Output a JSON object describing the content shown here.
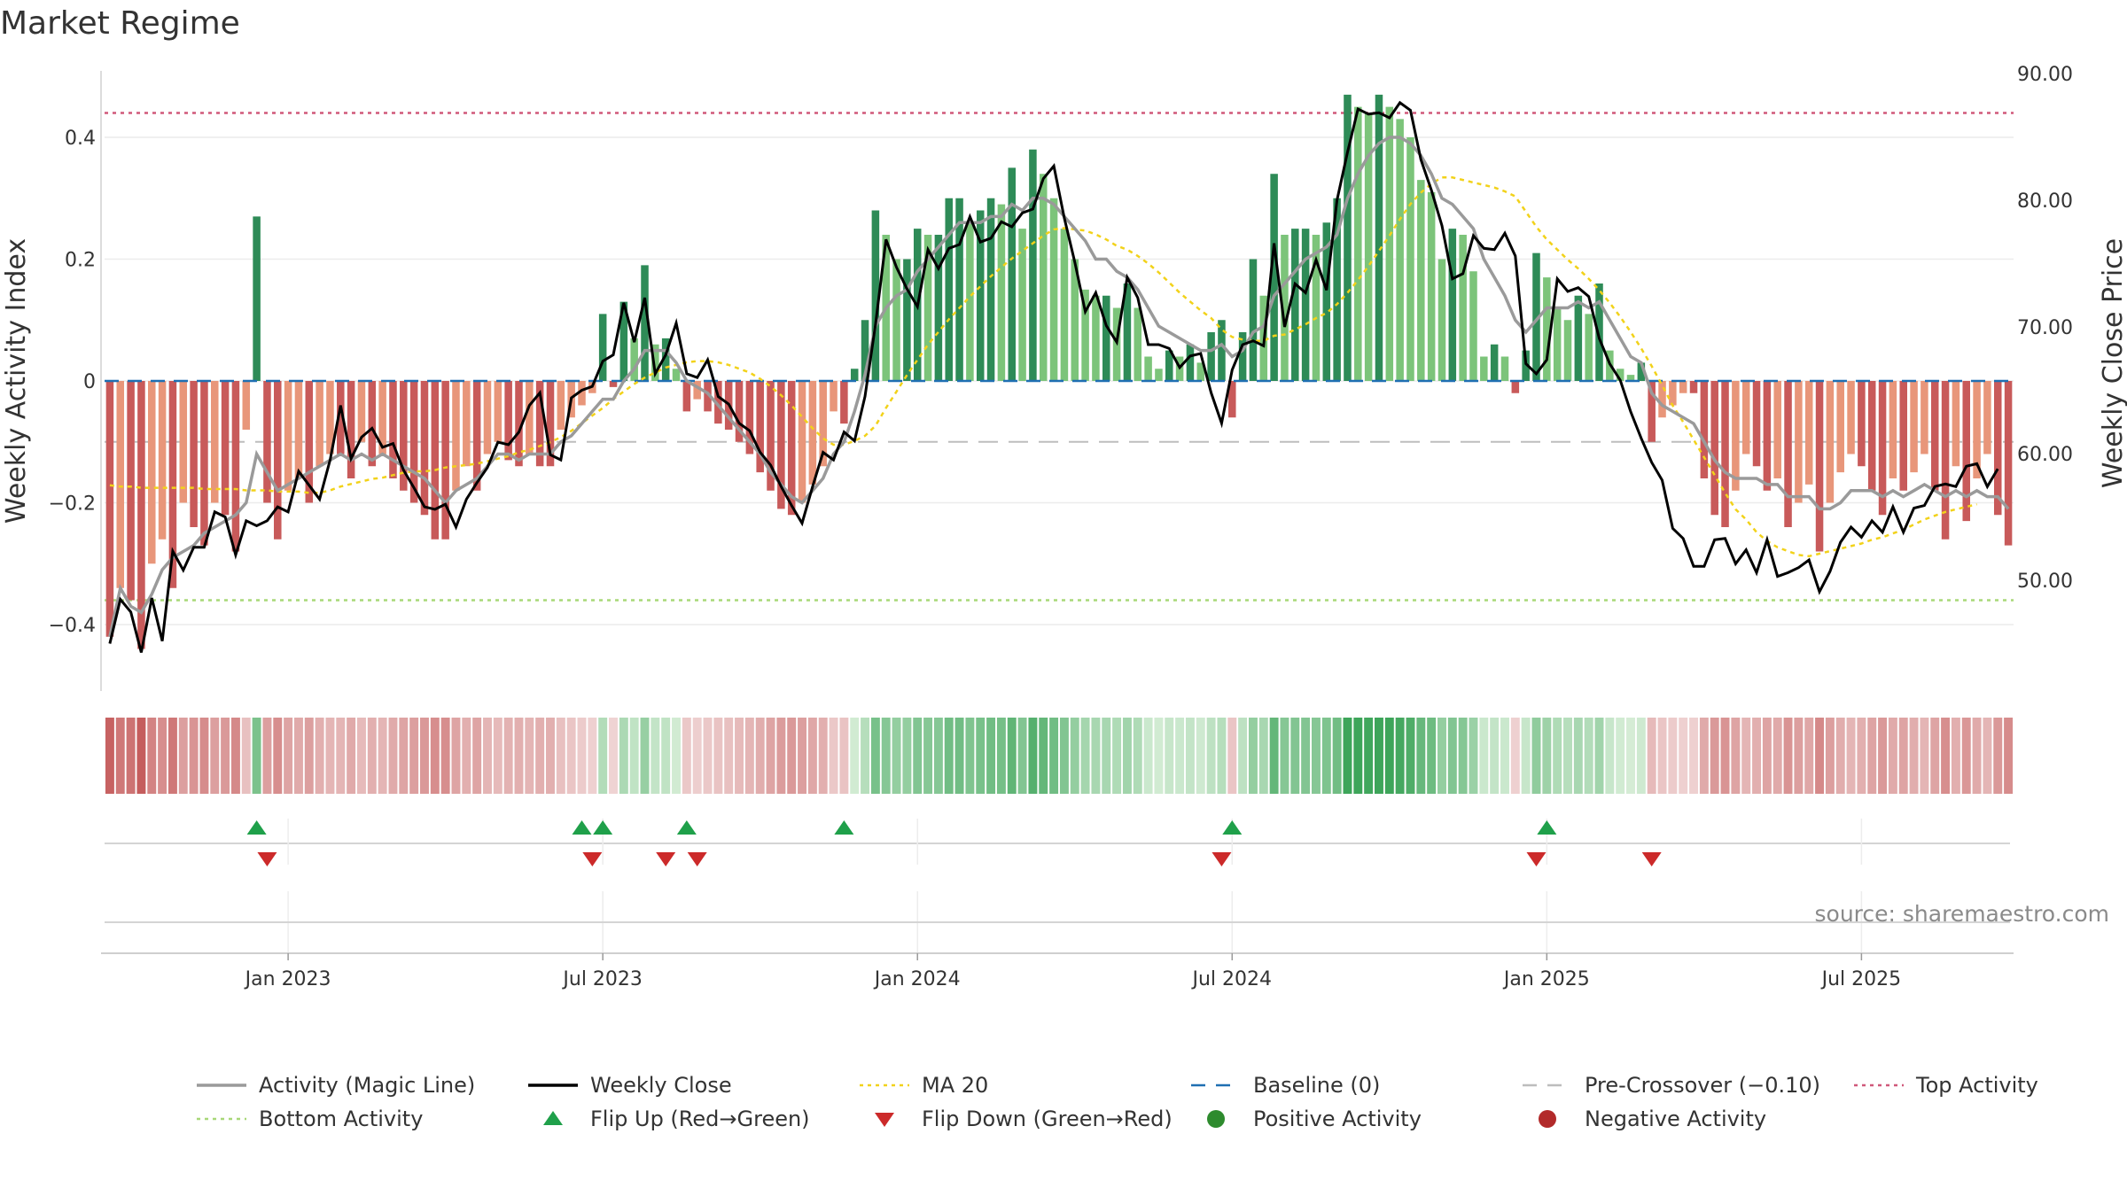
{
  "title": "Market Regime",
  "source": "source: sharemaestro.com",
  "colors": {
    "pos_dark": "#2e8b57",
    "pos_light": "#7cc47a",
    "neg_dark": "#c85a5a",
    "neg_light": "#e8967a",
    "magic_line": "#9a9a9a",
    "close": "#000000",
    "ma20": "#f2d21a",
    "baseline": "#1f6fb2",
    "pre_crossover": "#bdbdbd",
    "top": "#d0587a",
    "bottom": "#a8d878",
    "flip_up": "#1fa04a",
    "flip_down": "#cc2a2a"
  },
  "chart_data": {
    "type": "bar",
    "title": "Market Regime",
    "ylabel_left": "Weekly Activity Index",
    "ylabel_right": "Weekly Close Price",
    "y_left_ticks": [
      "−0.4",
      "−0.2",
      "0",
      "0.2",
      "0.4"
    ],
    "y_left_tick_values": [
      -0.4,
      -0.2,
      0,
      0.2,
      0.4
    ],
    "y_right_ticks": [
      "50.00",
      "60.00",
      "70.00",
      "80.00",
      "90.00"
    ],
    "y_right_tick_values": [
      50,
      60,
      70,
      80,
      90
    ],
    "x_ticks": [
      "Jan 2023",
      "Jul 2023",
      "Jan 2024",
      "Jul 2024",
      "Jan 2025",
      "Jul 2025"
    ],
    "x_tick_week_index": [
      17,
      47,
      77,
      107,
      137,
      167
    ],
    "ylim_left": [
      -0.5,
      0.5
    ],
    "ylim_right": [
      43,
      92
    ],
    "top_activity": 0.44,
    "bottom_activity": -0.36,
    "pre_crossover": -0.1,
    "activity": [
      -0.42,
      -0.34,
      -0.36,
      -0.44,
      -0.3,
      -0.26,
      -0.34,
      -0.2,
      -0.24,
      -0.27,
      -0.2,
      -0.22,
      -0.28,
      -0.08,
      0.27,
      -0.2,
      -0.26,
      -0.18,
      -0.16,
      -0.2,
      -0.14,
      -0.12,
      -0.12,
      -0.16,
      -0.1,
      -0.14,
      -0.12,
      -0.16,
      -0.18,
      -0.2,
      -0.22,
      -0.26,
      -0.26,
      -0.18,
      -0.14,
      -0.18,
      -0.12,
      -0.1,
      -0.13,
      -0.14,
      -0.12,
      -0.14,
      -0.14,
      -0.08,
      -0.06,
      -0.04,
      -0.02,
      0.11,
      -0.01,
      0.13,
      0.07,
      0.19,
      0.06,
      0.07,
      0.02,
      -0.05,
      -0.03,
      -0.05,
      -0.07,
      -0.08,
      -0.1,
      -0.12,
      -0.15,
      -0.18,
      -0.21,
      -0.22,
      -0.2,
      -0.17,
      -0.14,
      -0.05,
      -0.07,
      0.02,
      0.1,
      0.28,
      0.24,
      0.2,
      0.2,
      0.25,
      0.24,
      0.24,
      0.3,
      0.3,
      0.26,
      0.28,
      0.3,
      0.29,
      0.35,
      0.25,
      0.38,
      0.34,
      0.3,
      0.25,
      0.2,
      0.15,
      0.14,
      0.14,
      0.12,
      0.16,
      0.12,
      0.04,
      0.02,
      0.05,
      0.04,
      0.06,
      0.03,
      0.08,
      0.1,
      -0.06,
      0.08,
      0.2,
      0.14,
      0.34,
      0.24,
      0.25,
      0.25,
      0.24,
      0.26,
      0.3,
      0.47,
      0.45,
      0.44,
      0.47,
      0.45,
      0.43,
      0.4,
      0.33,
      0.31,
      0.2,
      0.25,
      0.24,
      0.18,
      0.04,
      0.06,
      0.04,
      -0.02,
      0.05,
      0.21,
      0.17,
      0.12,
      0.1,
      0.14,
      0.11,
      0.16,
      0.05,
      0.02,
      0.01,
      0.03,
      -0.1,
      -0.06,
      -0.04,
      -0.02,
      -0.02,
      -0.16,
      -0.22,
      -0.24,
      -0.18,
      -0.12,
      -0.14,
      -0.18,
      -0.16,
      -0.24,
      -0.2,
      -0.17,
      -0.28,
      -0.2,
      -0.15,
      -0.12,
      -0.14,
      -0.18,
      -0.22,
      -0.16,
      -0.18,
      -0.15,
      -0.12,
      -0.18,
      -0.26,
      -0.14,
      -0.23,
      -0.16,
      -0.12,
      -0.22,
      -0.27
    ],
    "magic_line": [
      -0.42,
      -0.34,
      -0.37,
      -0.38,
      -0.35,
      -0.31,
      -0.29,
      -0.28,
      -0.27,
      -0.25,
      -0.24,
      -0.23,
      -0.22,
      -0.2,
      -0.12,
      -0.15,
      -0.18,
      -0.17,
      -0.16,
      -0.15,
      -0.14,
      -0.13,
      -0.12,
      -0.13,
      -0.12,
      -0.13,
      -0.12,
      -0.13,
      -0.14,
      -0.15,
      -0.16,
      -0.18,
      -0.2,
      -0.18,
      -0.17,
      -0.16,
      -0.14,
      -0.12,
      -0.12,
      -0.13,
      -0.12,
      -0.12,
      -0.12,
      -0.1,
      -0.09,
      -0.07,
      -0.05,
      -0.03,
      -0.03,
      0.0,
      0.02,
      0.05,
      0.05,
      0.05,
      0.03,
      0.0,
      -0.01,
      -0.02,
      -0.04,
      -0.06,
      -0.08,
      -0.1,
      -0.12,
      -0.15,
      -0.17,
      -0.19,
      -0.2,
      -0.18,
      -0.16,
      -0.12,
      -0.1,
      -0.05,
      0.01,
      0.09,
      0.12,
      0.14,
      0.15,
      0.18,
      0.2,
      0.22,
      0.24,
      0.26,
      0.26,
      0.26,
      0.27,
      0.27,
      0.29,
      0.28,
      0.3,
      0.3,
      0.29,
      0.27,
      0.25,
      0.23,
      0.2,
      0.2,
      0.18,
      0.17,
      0.15,
      0.12,
      0.09,
      0.08,
      0.07,
      0.06,
      0.05,
      0.05,
      0.06,
      0.04,
      0.05,
      0.08,
      0.09,
      0.14,
      0.16,
      0.18,
      0.2,
      0.21,
      0.22,
      0.24,
      0.3,
      0.34,
      0.37,
      0.39,
      0.4,
      0.4,
      0.39,
      0.37,
      0.34,
      0.3,
      0.29,
      0.27,
      0.25,
      0.2,
      0.17,
      0.14,
      0.1,
      0.08,
      0.1,
      0.12,
      0.12,
      0.12,
      0.13,
      0.12,
      0.13,
      0.1,
      0.07,
      0.04,
      0.03,
      -0.02,
      -0.04,
      -0.05,
      -0.06,
      -0.07,
      -0.1,
      -0.13,
      -0.15,
      -0.16,
      -0.16,
      -0.16,
      -0.17,
      -0.17,
      -0.19,
      -0.19,
      -0.19,
      -0.21,
      -0.21,
      -0.2,
      -0.18,
      -0.18,
      -0.18,
      -0.19,
      -0.18,
      -0.19,
      -0.18,
      -0.17,
      -0.18,
      -0.19,
      -0.18,
      -0.19,
      -0.18,
      -0.19,
      -0.19,
      -0.21
    ],
    "weekly_close": [
      45.0,
      48.5,
      47.5,
      44.3,
      48.6,
      45.2,
      52.3,
      50.8,
      52.6,
      52.6,
      55.4,
      55.0,
      52.0,
      54.7,
      54.3,
      54.7,
      55.8,
      55.4,
      58.6,
      57.5,
      56.4,
      59.5,
      63.8,
      59.6,
      61.3,
      62.0,
      60.5,
      60.8,
      58.7,
      57.3,
      55.8,
      55.6,
      56.0,
      54.2,
      56.4,
      57.7,
      58.9,
      60.9,
      60.7,
      61.7,
      63.8,
      64.8,
      59.9,
      59.5,
      64.4,
      65.0,
      65.3,
      67.3,
      67.8,
      71.9,
      68.8,
      72.3,
      66.3,
      67.8,
      70.3,
      66.3,
      66.0,
      67.4,
      64.5,
      63.9,
      62.4,
      61.8,
      60.1,
      59.1,
      57.4,
      55.9,
      54.5,
      57.4,
      60.1,
      59.5,
      61.7,
      61.0,
      64.5,
      70.2,
      76.9,
      74.7,
      73.0,
      71.6,
      76.1,
      74.6,
      76.2,
      76.5,
      78.7,
      76.7,
      77.0,
      78.3,
      77.9,
      79.0,
      79.3,
      81.7,
      82.7,
      78.6,
      75.1,
      71.2,
      72.7,
      70.1,
      68.8,
      73.9,
      72.3,
      68.6,
      68.6,
      68.3,
      66.8,
      67.7,
      67.9,
      64.8,
      62.4,
      66.6,
      68.6,
      68.9,
      68.5,
      76.6,
      70.0,
      73.4,
      72.7,
      75.3,
      72.9,
      80.0,
      83.8,
      87.2,
      86.8,
      86.9,
      86.5,
      87.7,
      87.1,
      83.2,
      80.8,
      78.0,
      73.8,
      74.2,
      77.2,
      76.2,
      76.1,
      77.4,
      75.6,
      67.1,
      66.3,
      67.4,
      73.8,
      72.8,
      73.1,
      72.4,
      69.1,
      67.1,
      65.8,
      63.3,
      61.2,
      59.3,
      57.9,
      54.1,
      53.3,
      51.1,
      51.1,
      53.2,
      53.3,
      51.3,
      52.4,
      50.6,
      53.2,
      50.3,
      50.6,
      51.0,
      51.6,
      49.1,
      50.7,
      53.0,
      54.2,
      53.4,
      54.7,
      53.8,
      55.8,
      53.8,
      55.7,
      55.9,
      57.4,
      57.6,
      57.4,
      59.0,
      59.2,
      57.4,
      58.8
    ],
    "ma20": [
      57.5,
      57.4,
      57.4,
      57.3,
      57.3,
      57.3,
      57.3,
      57.3,
      57.3,
      57.2,
      57.2,
      57.2,
      57.2,
      57.1,
      57.1,
      57.1,
      57.0,
      57.0,
      57.0,
      56.9,
      56.9,
      57.1,
      57.4,
      57.6,
      57.8,
      58.0,
      58.1,
      58.3,
      58.5,
      58.6,
      58.6,
      58.7,
      58.9,
      59.0,
      59.1,
      59.2,
      59.4,
      59.6,
      59.8,
      60.1,
      60.3,
      60.6,
      60.9,
      61.3,
      61.8,
      62.4,
      63.0,
      63.6,
      64.3,
      64.9,
      65.5,
      66.0,
      66.4,
      66.8,
      67.0,
      67.2,
      67.3,
      67.3,
      67.2,
      67.0,
      66.7,
      66.4,
      65.9,
      65.3,
      64.6,
      63.8,
      62.9,
      62.0,
      61.2,
      60.7,
      60.7,
      61.0,
      61.4,
      62.2,
      63.6,
      64.9,
      66.2,
      67.4,
      68.6,
      69.6,
      70.6,
      71.5,
      72.4,
      73.2,
      74.0,
      74.7,
      75.4,
      76.0,
      76.6,
      77.2,
      77.7,
      77.8,
      77.7,
      77.6,
      77.3,
      76.9,
      76.4,
      76.1,
      75.6,
      75.0,
      74.3,
      73.5,
      72.7,
      72.0,
      71.3,
      70.7,
      69.8,
      69.2,
      69.0,
      68.9,
      68.9,
      69.3,
      69.4,
      69.8,
      70.2,
      70.7,
      71.1,
      71.8,
      72.7,
      73.7,
      74.8,
      76.0,
      77.2,
      78.5,
      79.7,
      80.6,
      81.3,
      81.8,
      81.8,
      81.6,
      81.4,
      81.2,
      81.0,
      80.7,
      80.3,
      79.1,
      77.9,
      76.9,
      76.1,
      75.3,
      74.6,
      73.8,
      72.9,
      71.9,
      70.8,
      69.6,
      68.3,
      66.9,
      65.4,
      63.8,
      62.5,
      61.1,
      59.7,
      58.3,
      56.9,
      55.6,
      54.8,
      53.8,
      53.1,
      52.6,
      52.3,
      52.0,
      51.9,
      52.1,
      52.3,
      52.5,
      52.7,
      52.9,
      53.2,
      53.4,
      53.7,
      54.0,
      54.4,
      54.8,
      55.1,
      55.4,
      55.6,
      55.8,
      56.0
    ],
    "flip_up_weeks": [
      14,
      45,
      47,
      55,
      70,
      107,
      137
    ],
    "flip_down_weeks": [
      15,
      46,
      53,
      56,
      106,
      136,
      147
    ],
    "legend": [
      {
        "label": "Activity (Magic Line)",
        "style": "line",
        "color": "#9a9a9a"
      },
      {
        "label": "Weekly Close",
        "style": "line",
        "color": "#000000"
      },
      {
        "label": "MA 20",
        "style": "dotted",
        "color": "#f2d21a"
      },
      {
        "label": "Baseline (0)",
        "style": "dashed",
        "color": "#1f6fb2"
      },
      {
        "label": "Pre-Crossover (−0.10)",
        "style": "dashed",
        "color": "#bdbdbd"
      },
      {
        "label": "Top Activity",
        "style": "dotted",
        "color": "#d0587a"
      },
      {
        "label": "Bottom Activity",
        "style": "dotted",
        "color": "#a8d878"
      },
      {
        "label": "Flip Up (Red→Green)",
        "style": "triangle-up",
        "color": "#1fa04a"
      },
      {
        "label": "Flip Down (Green→Red)",
        "style": "triangle-down",
        "color": "#cc2a2a"
      },
      {
        "label": "Positive Activity",
        "style": "circle",
        "color": "#2e8b2e"
      },
      {
        "label": "Negative Activity",
        "style": "circle",
        "color": "#b22a2a"
      }
    ],
    "legend_placement": "bottom"
  }
}
